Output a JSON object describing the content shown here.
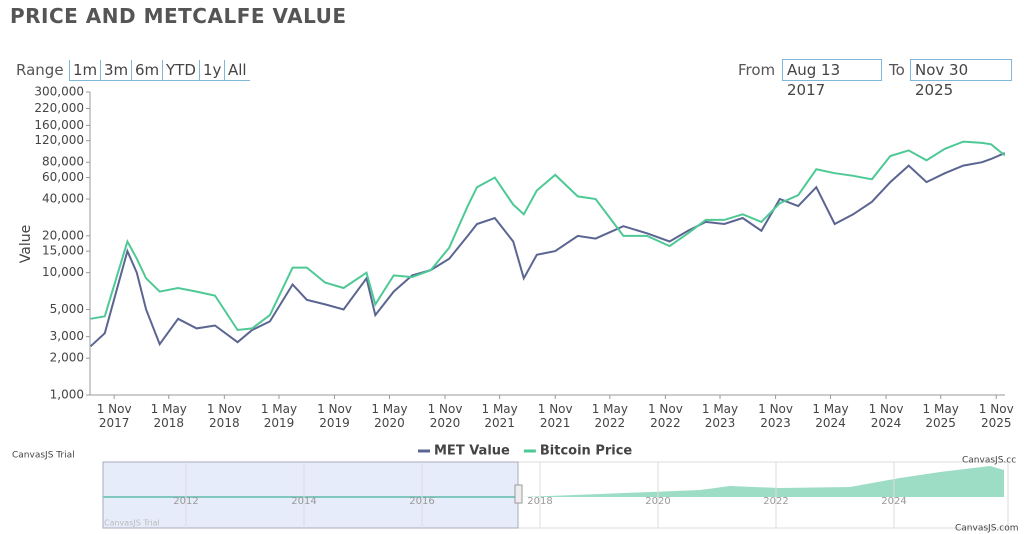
{
  "header": {
    "title": "PRICE AND METCALFE VALUE"
  },
  "range_selector": {
    "label": "Range",
    "buttons": [
      "1m",
      "3m",
      "6m",
      "YTD",
      "1y",
      "All"
    ],
    "from_label": "From",
    "from": "Aug 13 2017",
    "to_label": "To",
    "to": "Nov 30 2025"
  },
  "chart_data": {
    "type": "line",
    "y_label": "Value",
    "log_y": true,
    "grid": false,
    "x": [
      "2017-08-15",
      "2017-10-01",
      "2017-12-15",
      "2018-01-15",
      "2018-02-15",
      "2018-04-01",
      "2018-06-01",
      "2018-08-01",
      "2018-10-01",
      "2018-12-15",
      "2019-02-01",
      "2019-04-01",
      "2019-06-15",
      "2019-08-01",
      "2019-10-01",
      "2019-12-01",
      "2020-02-15",
      "2020-03-15",
      "2020-05-15",
      "2020-07-15",
      "2020-09-15",
      "2020-11-15",
      "2021-01-15",
      "2021-02-15",
      "2021-04-15",
      "2021-06-15",
      "2021-07-20",
      "2021-09-01",
      "2021-11-01",
      "2022-01-15",
      "2022-03-15",
      "2022-06-15",
      "2022-09-01",
      "2022-11-15",
      "2023-01-15",
      "2023-03-15",
      "2023-05-15",
      "2023-07-15",
      "2023-09-15",
      "2023-11-15",
      "2024-01-15",
      "2024-03-15",
      "2024-05-15",
      "2024-07-15",
      "2024-09-15",
      "2024-11-15",
      "2025-01-15",
      "2025-03-15",
      "2025-05-15",
      "2025-07-15",
      "2025-09-15",
      "2025-10-15",
      "2025-11-29"
    ],
    "series": [
      {
        "name": "MET Value",
        "color": "#5b6591",
        "values": [
          2500,
          3200,
          15000,
          10000,
          5000,
          2600,
          4200,
          3500,
          3700,
          2700,
          3400,
          4000,
          8000,
          6000,
          5500,
          5000,
          9000,
          4500,
          7000,
          9500,
          10500,
          13000,
          20000,
          25000,
          28000,
          18000,
          9000,
          14000,
          15000,
          20000,
          19000,
          24000,
          21000,
          18000,
          22000,
          26000,
          25000,
          28000,
          22000,
          40000,
          35000,
          50000,
          25000,
          30000,
          38000,
          55000,
          75000,
          55000,
          65000,
          75000,
          80000,
          85000,
          95000
        ]
      },
      {
        "name": "Bitcoin Price",
        "color": "#4ec995",
        "values": [
          4200,
          4400,
          18000,
          13000,
          9000,
          7000,
          7500,
          7000,
          6500,
          3400,
          3500,
          4500,
          11000,
          11000,
          8300,
          7500,
          10000,
          5500,
          9500,
          9200,
          10500,
          16000,
          35000,
          50000,
          60000,
          36000,
          30000,
          47000,
          63000,
          42000,
          40000,
          20000,
          20000,
          16500,
          21000,
          27000,
          27000,
          30000,
          26000,
          37000,
          43000,
          70000,
          65000,
          62000,
          58000,
          90000,
          100000,
          83000,
          103000,
          118000,
          115000,
          112000,
          91000
        ]
      }
    ],
    "xlim": [
      "2017-08-13",
      "2025-11-30"
    ],
    "xticks": [
      {
        "value": "2017-11-01",
        "label": "1 Nov 2017"
      },
      {
        "value": "2018-05-01",
        "label": "1 May 2018"
      },
      {
        "value": "2018-11-01",
        "label": "1 Nov 2018"
      },
      {
        "value": "2019-05-01",
        "label": "1 May 2019"
      },
      {
        "value": "2019-11-01",
        "label": "1 Nov 2019"
      },
      {
        "value": "2020-05-01",
        "label": "1 May 2020"
      },
      {
        "value": "2020-11-01",
        "label": "1 Nov 2020"
      },
      {
        "value": "2021-05-01",
        "label": "1 May 2021"
      },
      {
        "value": "2021-11-01",
        "label": "1 Nov 2021"
      },
      {
        "value": "2022-05-01",
        "label": "1 May 2022"
      },
      {
        "value": "2022-11-01",
        "label": "1 Nov 2022"
      },
      {
        "value": "2023-05-01",
        "label": "1 May 2023"
      },
      {
        "value": "2023-11-01",
        "label": "1 Nov 2023"
      },
      {
        "value": "2024-05-01",
        "label": "1 May 2024"
      },
      {
        "value": "2024-11-01",
        "label": "1 Nov 2024"
      },
      {
        "value": "2025-05-01",
        "label": "1 May 2025"
      },
      {
        "value": "2025-11-01",
        "label": "1 Nov 2025"
      }
    ],
    "ylim": [
      1000,
      300000
    ],
    "yticks": [
      {
        "value": 1000,
        "label": "1,000"
      },
      {
        "value": 2000,
        "label": "2,000"
      },
      {
        "value": 3000,
        "label": "3,000"
      },
      {
        "value": 5000,
        "label": "5,000"
      },
      {
        "value": 10000,
        "label": "10,000"
      },
      {
        "value": 15000,
        "label": "15,000"
      },
      {
        "value": 20000,
        "label": "20,000"
      },
      {
        "value": 40000,
        "label": "40,000"
      },
      {
        "value": 60000,
        "label": "60,000"
      },
      {
        "value": 80000,
        "label": "80,000"
      },
      {
        "value": 120000,
        "label": "120,000"
      },
      {
        "value": 160000,
        "label": "160,000"
      },
      {
        "value": 220000,
        "label": "220,000"
      },
      {
        "value": 300000,
        "label": "300,000"
      }
    ]
  },
  "navigator": {
    "labels": [
      "2012",
      "2014",
      "2016",
      "2018",
      "2020",
      "2022",
      "2024"
    ],
    "watermark": "CanvasJS Trial",
    "credit": "CanvasJS.com",
    "credit_top": "CanvasJS.cc"
  }
}
